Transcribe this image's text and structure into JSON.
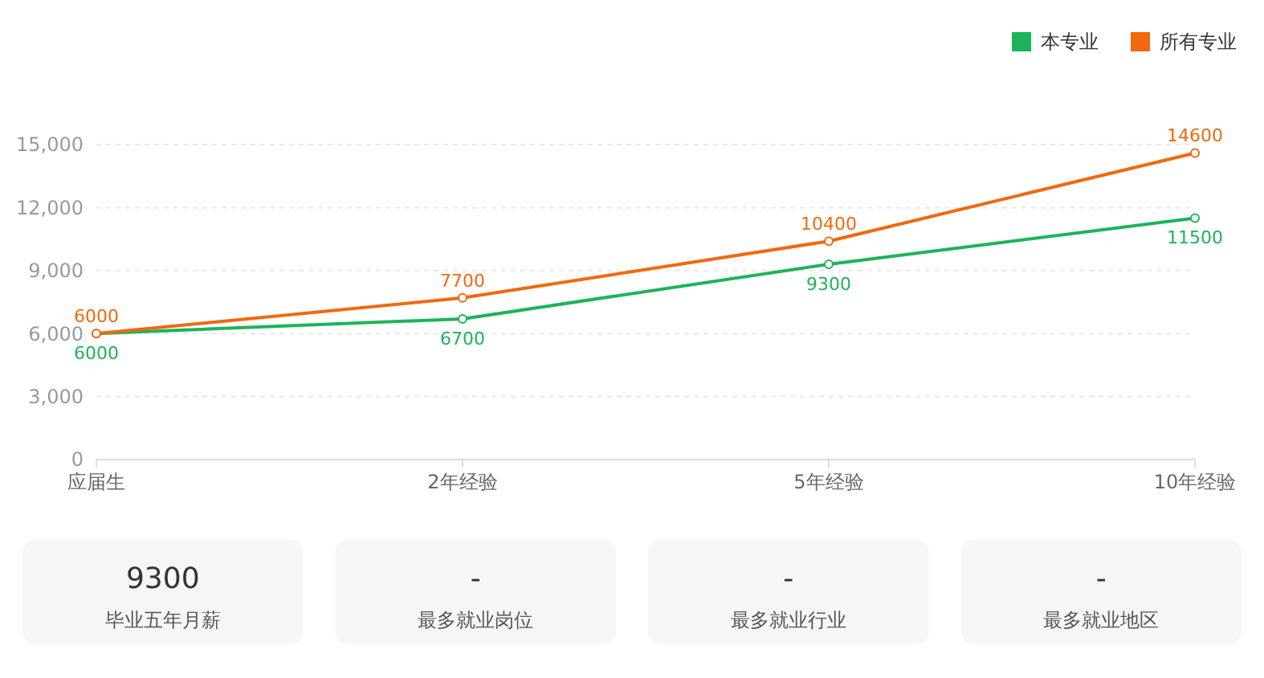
{
  "chart_data": [
    {
      "type": "line",
      "categories": [
        "应届生",
        "2年经验",
        "5年经验",
        "10年经验"
      ],
      "series": [
        {
          "name": "本专业",
          "color": "#1db35a",
          "values": [
            6000,
            6700,
            9300,
            11500
          ]
        },
        {
          "name": "所有专业",
          "color": "#f0690f",
          "values": [
            6000,
            7700,
            10400,
            14600
          ]
        }
      ],
      "ylim": [
        0,
        15000
      ],
      "yticks": [
        {
          "value": 0,
          "label": "0"
        },
        {
          "value": 3000,
          "label": "3,000"
        },
        {
          "value": 6000,
          "label": "6,000"
        },
        {
          "value": 9000,
          "label": "9,000"
        },
        {
          "value": 12000,
          "label": "12,000"
        },
        {
          "value": 15000,
          "label": "15,000"
        }
      ],
      "grid": "y",
      "legend": "top right",
      "marker": "circle",
      "data_labels": true
    },
    {
      "type": "other",
      "annotations": [
        "9300",
        "毕业五年月薪",
        "-",
        "最多就业岗位",
        "-",
        "最多就业行业",
        "-",
        "最多就业地区"
      ]
    }
  ]
}
